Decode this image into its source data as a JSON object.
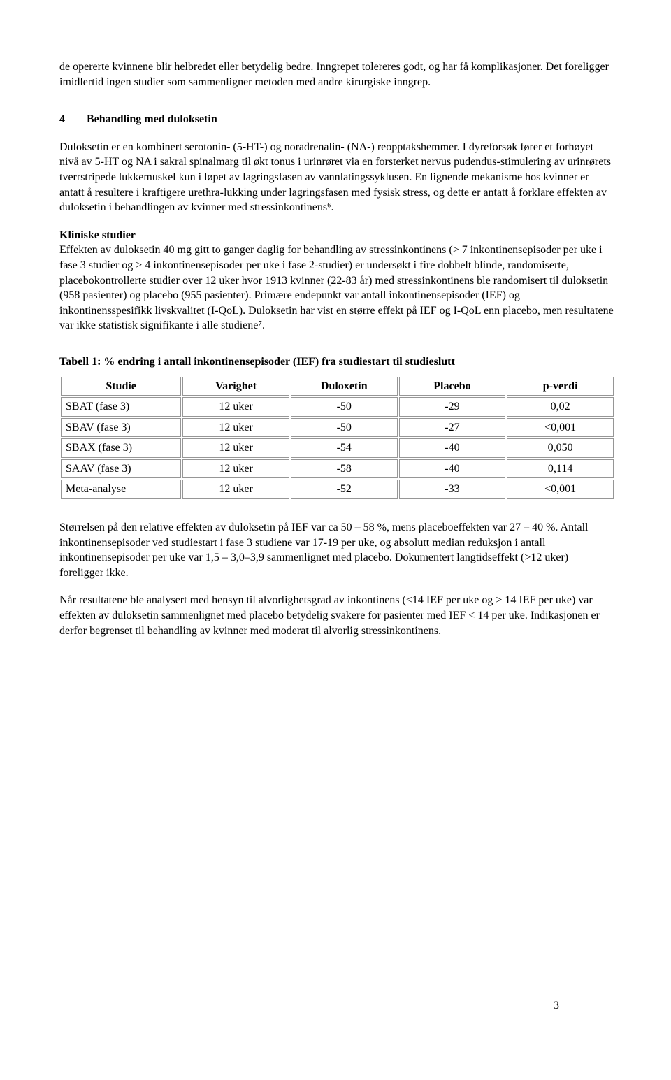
{
  "para_intro": "de opererte kvinnene blir helbredet eller betydelig bedre. Inngrepet tolereres godt, og har få komplikasjoner. Det foreligger imidlertid ingen studier som sammenligner metoden med andre kirurgiske inngrep.",
  "section4": {
    "number": "4",
    "title": "Behandling med duloksetin"
  },
  "para_mech": "Duloksetin er en kombinert serotonin- (5-HT-) og noradrenalin- (NA-) reopptakshemmer. I dyreforsøk fører et forhøyet nivå av 5-HT og NA i sakral spinalmarg til økt tonus i urinrøret via en forsterket nervus pudendus-stimulering av urinrørets tverrstripede lukkemuskel kun i løpet av lagringsfasen av vannlatingssyklusen. En lignende mekanisme hos kvinner er antatt å resultere i kraftigere urethra-lukking under lagringsfasen med fysisk stress, og dette er antatt å forklare effekten av duloksetin i behandlingen av kvinner med stressinkontinens⁶.",
  "clinical_heading": "Kliniske studier",
  "para_clinical": "Effekten av duloksetin 40 mg gitt to ganger daglig for behandling av stressinkontinens (> 7 inkontinensepisoder per uke i fase 3 studier og > 4 inkontinensepisoder per uke i fase 2-studier) er undersøkt i fire dobbelt blinde, randomiserte, placebokontrollerte studier over 12 uker hvor 1913 kvinner (22-83 år) med stressinkontinens ble randomisert til duloksetin (958 pasienter) og placebo (955 pasienter). Primære endepunkt var antall inkontinensepisoder (IEF) og inkontinensspesifikk livskvalitet (I-QoL). Duloksetin har vist en større effekt på IEF og I-QoL enn placebo, men resultatene var ikke statistisk signifikante i alle studiene⁷.",
  "table": {
    "caption": "Tabell 1: % endring i antall inkontinensepisoder (IEF) fra studiestart til studieslutt",
    "headers": [
      "Studie",
      "Varighet",
      "Duloxetin",
      "Placebo",
      "p-verdi"
    ],
    "rows": [
      [
        "SBAT (fase 3)",
        "12 uker",
        "-50",
        "-29",
        "0,02"
      ],
      [
        "SBAV (fase 3)",
        "12 uker",
        "-50",
        "-27",
        "<0,001"
      ],
      [
        "SBAX (fase 3)",
        "12 uker",
        "-54",
        "-40",
        "0,050"
      ],
      [
        "SAAV (fase 3)",
        "12 uker",
        "-58",
        "-40",
        "0,114"
      ],
      [
        "Meta-analyse",
        "12 uker",
        "-52",
        "-33",
        "<0,001"
      ]
    ]
  },
  "para_effect": "Størrelsen på den relative effekten av duloksetin på IEF var ca 50 – 58 %, mens placeboeffekten var 27 – 40 %. Antall inkontinensepisoder ved studiestart i fase 3 studiene var 17-19 per uke, og absolutt median reduksjon i antall inkontinensepisoder per uke var 1,5 – 3,0–3,9 sammenlignet med placebo. Dokumentert langtidseffekt (>12 uker) foreligger ikke.",
  "para_severity": "Når resultatene ble analysert med hensyn til alvorlighetsgrad av inkontinens (<14 IEF per uke og > 14 IEF per uke) var effekten av duloksetin sammenlignet med placebo betydelig svakere for pasienter med IEF < 14 per uke. Indikasjonen er derfor begrenset til behandling av kvinner med moderat til alvorlig stressinkontinens.",
  "page_number": "3"
}
